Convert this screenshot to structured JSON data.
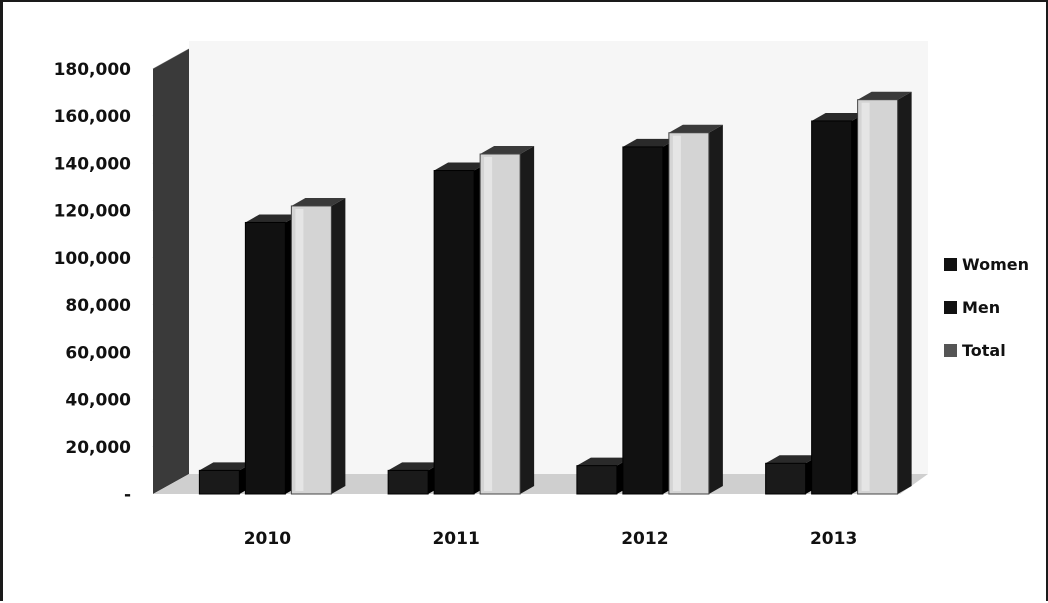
{
  "chart_data": {
    "type": "bar",
    "categories": [
      "2010",
      "2011",
      "2012",
      "2013"
    ],
    "series": [
      {
        "name": "Women",
        "values": [
          10000,
          10000,
          12000,
          13000
        ],
        "color": "#1a1a1a"
      },
      {
        "name": "Men",
        "values": [
          115000,
          137000,
          147000,
          158000
        ],
        "color": "#111111"
      },
      {
        "name": "Total",
        "values": [
          122000,
          144000,
          153000,
          167000
        ],
        "color": "#d4d4d4"
      }
    ],
    "y_ticks": [
      "-",
      "20,000",
      "40,000",
      "60,000",
      "80,000",
      "100,000",
      "120,000",
      "140,000",
      "160,000",
      "180,000"
    ],
    "ylim": [
      0,
      180000
    ],
    "grid": true,
    "legend_position": "right",
    "title": "",
    "xlabel": "",
    "ylabel": ""
  }
}
